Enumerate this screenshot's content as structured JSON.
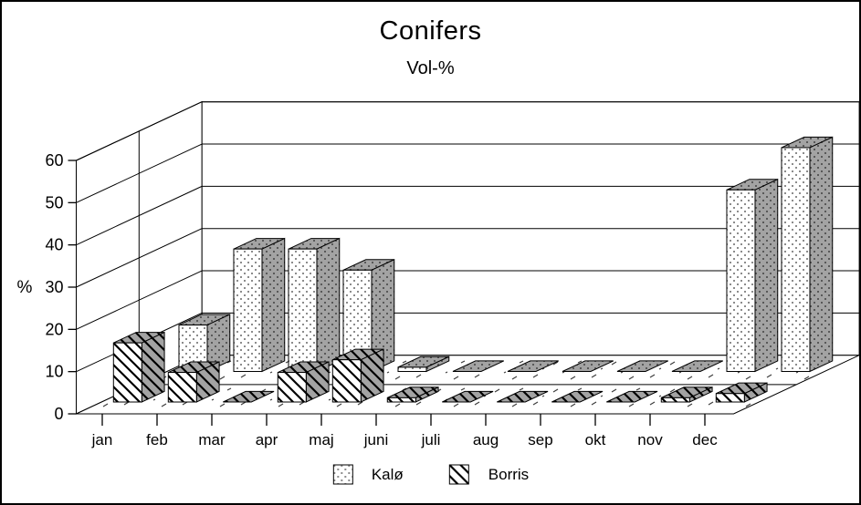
{
  "frame": {
    "title": "Conifers",
    "subtitle": "Vol-%"
  },
  "chart_data": {
    "type": "bar",
    "projection": "3d",
    "title": "Conifers",
    "subtitle": "Vol-%",
    "ylabel": "%",
    "ylim": [
      0,
      60
    ],
    "yticks": [
      0,
      10,
      20,
      30,
      40,
      50,
      60
    ],
    "grid": true,
    "legend_position": "bottom-center",
    "categories": [
      "jan",
      "feb",
      "mar",
      "apr",
      "maj",
      "juni",
      "juli",
      "aug",
      "sep",
      "okt",
      "nov",
      "dec"
    ],
    "series": [
      {
        "name": "Kalø",
        "pattern": "dots",
        "depth_row": "back",
        "values": [
          11,
          29,
          29,
          24,
          1,
          0,
          0,
          0,
          0,
          0,
          43,
          53
        ]
      },
      {
        "name": "Borris",
        "pattern": "diagonal-stripes",
        "depth_row": "front",
        "values": [
          14,
          7,
          0,
          7,
          10,
          1,
          0,
          0,
          0,
          0,
          1,
          2
        ]
      }
    ]
  },
  "colors": {
    "background": "#ffffff",
    "line": "#000000",
    "face_white": "#ffffff",
    "face_gray": "#a3a3a3",
    "dot_on_white": "#8c8c8c",
    "dot_on_gray": "#595959",
    "speckle": "#3c3c3c",
    "text": "#000000"
  }
}
